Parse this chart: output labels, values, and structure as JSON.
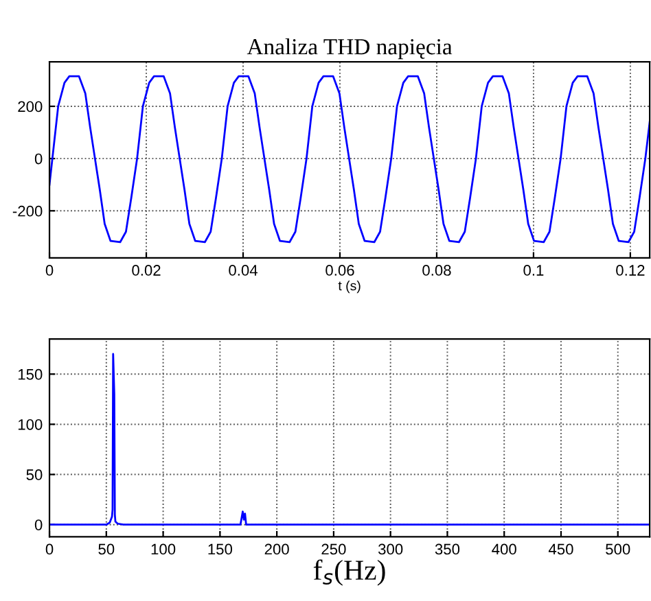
{
  "chart_data": [
    {
      "type": "line",
      "title": "Analiza THD napięcia",
      "xlabel": "t (s)",
      "xlim": [
        0,
        0.124
      ],
      "ylim": [
        -380,
        370
      ],
      "xticks": [
        0,
        0.02,
        0.04,
        0.06,
        0.08,
        0.1,
        0.12
      ],
      "yticks": [
        -200,
        0,
        200
      ],
      "grid": true,
      "series": [
        {
          "color": "#0000ff",
          "x": [
            0,
            0.0006,
            0.0018,
            0.0031,
            0.0041,
            0.0061,
            0.0074,
            0.0084,
            0.0094,
            0.0104,
            0.0114,
            0.0126,
            0.0146,
            0.0158,
            0.0169,
            0.0181,
            0.0193,
            0.0206,
            0.0216,
            0.0236,
            0.0249,
            0.0259,
            0.0269,
            0.0279,
            0.0289,
            0.0301,
            0.0321,
            0.0333,
            0.0344,
            0.0356,
            0.0368,
            0.0381,
            0.0391,
            0.0411,
            0.0424,
            0.0434,
            0.0444,
            0.0454,
            0.0464,
            0.0476,
            0.0496,
            0.0508,
            0.0519,
            0.0531,
            0.0543,
            0.0556,
            0.0566,
            0.0586,
            0.0599,
            0.0609,
            0.0619,
            0.0629,
            0.0639,
            0.0651,
            0.0671,
            0.0683,
            0.0694,
            0.0706,
            0.0718,
            0.0731,
            0.0741,
            0.0761,
            0.0774,
            0.0784,
            0.0794,
            0.0804,
            0.0814,
            0.0826,
            0.0846,
            0.0858,
            0.0869,
            0.0881,
            0.0893,
            0.0906,
            0.0916,
            0.0936,
            0.0949,
            0.0959,
            0.0969,
            0.0979,
            0.0989,
            0.1001,
            0.1021,
            0.1033,
            0.1044,
            0.1056,
            0.1068,
            0.1081,
            0.1091,
            0.1111,
            0.1124,
            0.1134,
            0.1144,
            0.1154,
            0.1164,
            0.1176,
            0.1196,
            0.1208,
            0.1219,
            0.1231,
            0.124
          ],
          "values": [
            -100,
            0,
            200,
            290,
            315,
            315,
            250,
            120,
            0,
            -120,
            -250,
            -315,
            -320,
            -280,
            -150,
            0,
            200,
            290,
            315,
            315,
            250,
            120,
            0,
            -120,
            -250,
            -315,
            -320,
            -280,
            -150,
            0,
            200,
            290,
            315,
            315,
            250,
            120,
            0,
            -120,
            -250,
            -315,
            -320,
            -280,
            -150,
            0,
            200,
            290,
            315,
            315,
            250,
            120,
            0,
            -120,
            -250,
            -315,
            -320,
            -280,
            -150,
            0,
            200,
            290,
            315,
            315,
            250,
            120,
            0,
            -120,
            -250,
            -315,
            -320,
            -280,
            -150,
            0,
            200,
            290,
            315,
            315,
            250,
            120,
            0,
            -120,
            -250,
            -315,
            -320,
            -280,
            -150,
            0,
            200,
            290,
            315,
            315,
            250,
            120,
            0,
            -120,
            -250,
            -315,
            -320,
            -280,
            -150,
            0,
            140
          ]
        }
      ]
    },
    {
      "type": "line",
      "xlabel": "f$_{s}$(Hz)",
      "xlim": [
        0,
        528
      ],
      "ylim": [
        -12,
        185
      ],
      "xticks": [
        0,
        50,
        100,
        150,
        200,
        250,
        300,
        350,
        400,
        450,
        500
      ],
      "yticks": [
        0,
        50,
        100,
        150
      ],
      "grid": true,
      "series": [
        {
          "color": "#0000ff",
          "x": [
            0,
            50,
            53,
            55,
            55.5,
            56,
            57,
            57.5,
            58,
            60,
            65,
            168,
            170,
            171,
            172,
            173,
            528
          ],
          "values": [
            0,
            0,
            2,
            8,
            15,
            170,
            130,
            10,
            3,
            1,
            0,
            0,
            13,
            5,
            11,
            0,
            0
          ]
        }
      ]
    }
  ]
}
